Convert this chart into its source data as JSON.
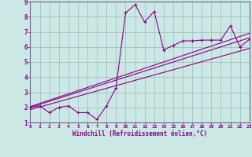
{
  "xlabel": "Windchill (Refroidissement éolien,°C)",
  "xlim": [
    0,
    23
  ],
  "ylim": [
    1,
    9
  ],
  "xticks": [
    0,
    1,
    2,
    3,
    4,
    5,
    6,
    7,
    8,
    9,
    10,
    11,
    12,
    13,
    14,
    15,
    16,
    17,
    18,
    19,
    20,
    21,
    22,
    23
  ],
  "yticks": [
    1,
    2,
    3,
    4,
    5,
    6,
    7,
    8,
    9
  ],
  "bg_color": "#cce8e4",
  "grid_color": "#99bbbb",
  "line_color": "#880088",
  "spine_color": "#666688",
  "data_line": {
    "x": [
      0,
      1,
      2,
      3,
      4,
      5,
      6,
      7,
      8,
      9,
      10,
      11,
      12,
      13,
      14,
      15,
      16,
      17,
      18,
      19,
      20,
      21,
      22,
      23
    ],
    "y": [
      2.0,
      2.1,
      1.65,
      2.0,
      2.1,
      1.65,
      1.65,
      1.2,
      2.1,
      3.3,
      8.25,
      8.8,
      7.65,
      8.35,
      5.8,
      6.1,
      6.4,
      6.4,
      6.45,
      6.45,
      6.45,
      7.4,
      6.0,
      6.5
    ]
  },
  "line1": {
    "x": [
      0,
      23
    ],
    "y": [
      2.0,
      6.6
    ]
  },
  "line2": {
    "x": [
      0,
      23
    ],
    "y": [
      2.05,
      6.9
    ]
  },
  "line3": {
    "x": [
      0,
      23
    ],
    "y": [
      1.85,
      5.9
    ]
  }
}
